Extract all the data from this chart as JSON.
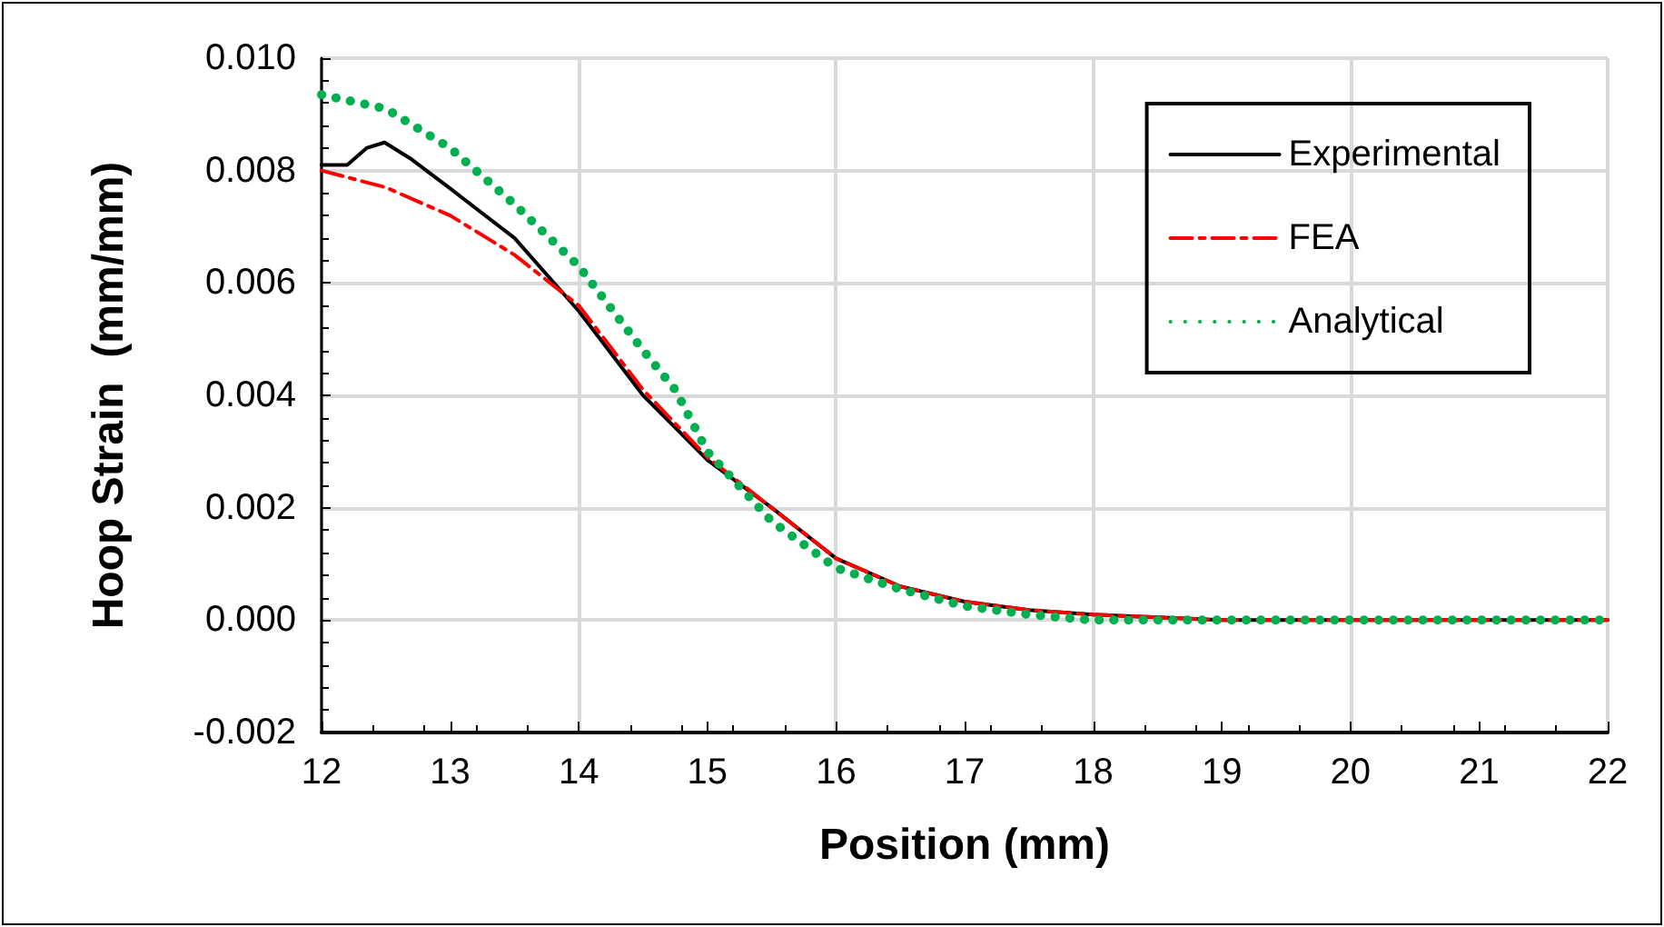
{
  "chart_data": {
    "type": "line",
    "xlabel": "Position (mm)",
    "ylabel": "Hoop Strain  (mm/mm)",
    "xlim": [
      12,
      22
    ],
    "xticks": [
      12,
      13,
      14,
      15,
      16,
      17,
      18,
      19,
      20,
      21,
      22
    ],
    "ylim": [
      -0.002,
      0.01
    ],
    "yticks": [
      {
        "value": -0.002,
        "label": "-0.002"
      },
      {
        "value": 0,
        "label": "0.000"
      },
      {
        "value": 0.002,
        "label": "0.002"
      },
      {
        "value": 0.004,
        "label": "0.004"
      },
      {
        "value": 0.006,
        "label": "0.006"
      },
      {
        "value": 0.008,
        "label": "0.008"
      },
      {
        "value": 0.01,
        "label": "0.010"
      }
    ],
    "grid": true,
    "legend": "top right",
    "marker": "none",
    "series": [
      {
        "name": "Experimental",
        "color": "#000000",
        "line_style": "solid",
        "x": [
          12,
          12.2,
          12.35,
          12.49,
          12.7,
          13,
          13.5,
          14,
          14.5,
          15,
          15.5,
          16,
          16.5,
          17,
          17.5,
          18,
          19,
          20,
          21,
          22
        ],
        "values": [
          0.0081,
          0.0081,
          0.0084,
          0.0085,
          0.0082,
          0.00768,
          0.0068,
          0.0055,
          0.004,
          0.00285,
          0.002,
          0.0011,
          0.0006,
          0.00033,
          0.00018,
          0.0001,
          0,
          0,
          0,
          0
        ]
      },
      {
        "name": "FEA",
        "color": "#ff0000",
        "line_style": "dashed",
        "x": [
          12,
          12.5,
          13,
          13.5,
          14,
          14.5,
          15,
          15.5,
          16,
          16.5,
          17,
          17.5,
          18,
          19,
          20,
          21,
          22
        ],
        "values": [
          0.008,
          0.0077,
          0.0072,
          0.0065,
          0.0056,
          0.0041,
          0.0029,
          0.002,
          0.0011,
          0.0006,
          0.00033,
          0.00018,
          0.0001,
          0,
          0,
          0,
          0
        ]
      },
      {
        "name": "Analytical",
        "color": "#00b050",
        "line_style": "dotted",
        "x": [
          12,
          12.5,
          13,
          13.5,
          14,
          14.5,
          14.75,
          15,
          15.5,
          16,
          16.5,
          17,
          17.5,
          18,
          19,
          20,
          21,
          22
        ],
        "values": [
          0.00935,
          0.0091,
          0.0084,
          0.0074,
          0.0063,
          0.0048,
          0.0041,
          0.003,
          0.00176,
          0.00093,
          0.00055,
          0.00025,
          0.0001,
          0,
          0,
          0,
          0,
          0
        ]
      }
    ]
  }
}
